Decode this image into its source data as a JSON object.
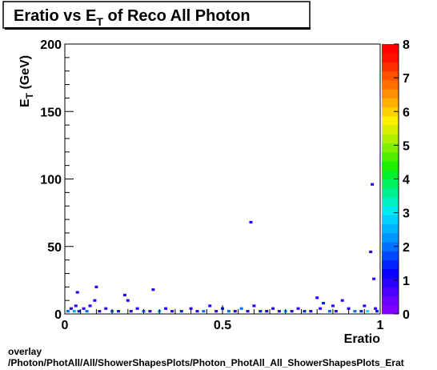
{
  "chart_data": {
    "type": "heatmap",
    "title": "Eratio vs E",
    "title_subscript": "T",
    "title_suffix": " of Reco All Photon",
    "xlabel": "Eratio",
    "ylabel": "E",
    "ylabel_subscript": "T",
    "ylabel_suffix": " (GeV)",
    "xlim": [
      0,
      1
    ],
    "ylim": [
      0,
      200
    ],
    "x_ticks": [
      {
        "value": 0,
        "label": "0"
      },
      {
        "value": 0.5,
        "label": "0.5"
      },
      {
        "value": 1,
        "label": "1"
      }
    ],
    "y_ticks": [
      {
        "value": 0,
        "label": "0"
      },
      {
        "value": 50,
        "label": "50"
      },
      {
        "value": 100,
        "label": "100"
      },
      {
        "value": 150,
        "label": "150"
      },
      {
        "value": 200,
        "label": "200"
      }
    ],
    "z_range": [
      0,
      8
    ],
    "z_ticks": [
      {
        "value": 0,
        "label": "0"
      },
      {
        "value": 1,
        "label": "1"
      },
      {
        "value": 2,
        "label": "2"
      },
      {
        "value": 3,
        "label": "3"
      },
      {
        "value": 4,
        "label": "4"
      },
      {
        "value": 5,
        "label": "5"
      },
      {
        "value": 6,
        "label": "6"
      },
      {
        "value": 7,
        "label": "7"
      },
      {
        "value": 8,
        "label": "8"
      }
    ],
    "palette": [
      "#8000ff",
      "#6a00ff",
      "#4b00ff",
      "#2b00ff",
      "#0a00ff",
      "#0022ff",
      "#0048ff",
      "#0070ff",
      "#0096ff",
      "#00b4ff",
      "#00d0ff",
      "#00e8f0",
      "#00f0c0",
      "#00f090",
      "#00f060",
      "#00f030",
      "#20f000",
      "#50f000",
      "#80f000",
      "#b0f000",
      "#d8f000",
      "#fff000",
      "#ffd000",
      "#ffb000",
      "#ff9000",
      "#ff7000",
      "#ff5000",
      "#ff3000",
      "#ff1000",
      "#ff0000"
    ],
    "cells": [
      {
        "x": 0.01,
        "y": 2,
        "z": 2
      },
      {
        "x": 0.02,
        "y": 4,
        "z": 1
      },
      {
        "x": 0.03,
        "y": 2,
        "z": 2.5
      },
      {
        "x": 0.035,
        "y": 6,
        "z": 1
      },
      {
        "x": 0.045,
        "y": 2,
        "z": 1.5
      },
      {
        "x": 0.06,
        "y": 4,
        "z": 1
      },
      {
        "x": 0.07,
        "y": 2,
        "z": 2
      },
      {
        "x": 0.08,
        "y": 6,
        "z": 1
      },
      {
        "x": 0.095,
        "y": 10,
        "z": 1
      },
      {
        "x": 0.1,
        "y": 20,
        "z": 1
      },
      {
        "x": 0.04,
        "y": 16,
        "z": 1
      },
      {
        "x": 0.11,
        "y": 2,
        "z": 1
      },
      {
        "x": 0.13,
        "y": 4,
        "z": 1
      },
      {
        "x": 0.15,
        "y": 2,
        "z": 2
      },
      {
        "x": 0.17,
        "y": 2,
        "z": 1.5
      },
      {
        "x": 0.19,
        "y": 14,
        "z": 1
      },
      {
        "x": 0.2,
        "y": 10,
        "z": 1
      },
      {
        "x": 0.21,
        "y": 2,
        "z": 1
      },
      {
        "x": 0.23,
        "y": 4,
        "z": 1
      },
      {
        "x": 0.25,
        "y": 2,
        "z": 2
      },
      {
        "x": 0.27,
        "y": 2,
        "z": 1
      },
      {
        "x": 0.28,
        "y": 18,
        "z": 1
      },
      {
        "x": 0.3,
        "y": 2,
        "z": 2.5
      },
      {
        "x": 0.32,
        "y": 4,
        "z": 1
      },
      {
        "x": 0.34,
        "y": 2,
        "z": 1
      },
      {
        "x": 0.37,
        "y": 2,
        "z": 1.5
      },
      {
        "x": 0.4,
        "y": 4,
        "z": 1
      },
      {
        "x": 0.42,
        "y": 2,
        "z": 1
      },
      {
        "x": 0.44,
        "y": 2,
        "z": 2
      },
      {
        "x": 0.46,
        "y": 6,
        "z": 1
      },
      {
        "x": 0.48,
        "y": 2,
        "z": 1
      },
      {
        "x": 0.5,
        "y": 4,
        "z": 1.5
      },
      {
        "x": 0.52,
        "y": 2,
        "z": 2
      },
      {
        "x": 0.54,
        "y": 2,
        "z": 1
      },
      {
        "x": 0.56,
        "y": 4,
        "z": 2
      },
      {
        "x": 0.58,
        "y": 2,
        "z": 1
      },
      {
        "x": 0.59,
        "y": 68,
        "z": 1
      },
      {
        "x": 0.6,
        "y": 6,
        "z": 1
      },
      {
        "x": 0.62,
        "y": 2,
        "z": 1.5
      },
      {
        "x": 0.64,
        "y": 2,
        "z": 1
      },
      {
        "x": 0.66,
        "y": 4,
        "z": 1
      },
      {
        "x": 0.68,
        "y": 2,
        "z": 1
      },
      {
        "x": 0.7,
        "y": 2,
        "z": 2.5
      },
      {
        "x": 0.72,
        "y": 2,
        "z": 1
      },
      {
        "x": 0.74,
        "y": 4,
        "z": 1
      },
      {
        "x": 0.76,
        "y": 2,
        "z": 1.5
      },
      {
        "x": 0.78,
        "y": 2,
        "z": 1
      },
      {
        "x": 0.8,
        "y": 12,
        "z": 1
      },
      {
        "x": 0.81,
        "y": 4,
        "z": 1
      },
      {
        "x": 0.82,
        "y": 8,
        "z": 1.5
      },
      {
        "x": 0.84,
        "y": 2,
        "z": 2
      },
      {
        "x": 0.85,
        "y": 6,
        "z": 1
      },
      {
        "x": 0.86,
        "y": 2,
        "z": 1
      },
      {
        "x": 0.88,
        "y": 10,
        "z": 1
      },
      {
        "x": 0.9,
        "y": 4,
        "z": 1
      },
      {
        "x": 0.92,
        "y": 2,
        "z": 2
      },
      {
        "x": 0.94,
        "y": 2,
        "z": 1.5
      },
      {
        "x": 0.95,
        "y": 6,
        "z": 1
      },
      {
        "x": 0.96,
        "y": 2,
        "z": 3
      },
      {
        "x": 0.97,
        "y": 46,
        "z": 1
      },
      {
        "x": 0.975,
        "y": 96,
        "z": 1
      },
      {
        "x": 0.98,
        "y": 26,
        "z": 1
      },
      {
        "x": 0.985,
        "y": 4,
        "z": 1
      },
      {
        "x": 0.99,
        "y": 2,
        "z": 1.5
      }
    ]
  },
  "footer": {
    "line1": "overlay",
    "line2": "/Photon/PhotAll/All/ShowerShapesPlots/Photon_PhotAll_All_ShowerShapesPlots_Erat"
  }
}
